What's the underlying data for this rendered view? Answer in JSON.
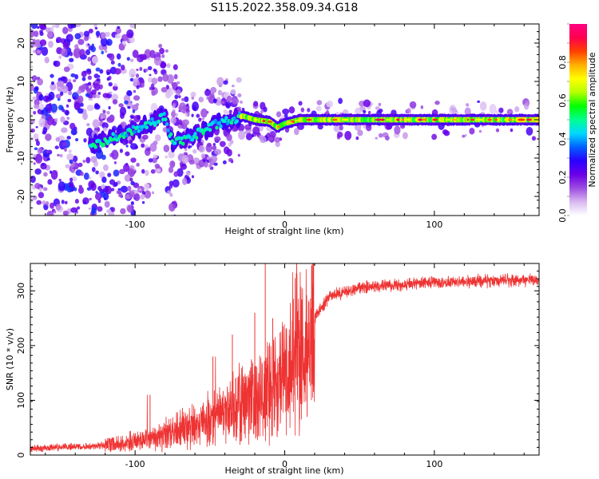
{
  "title": "S115.2022.358.09.34.G18",
  "chart_data": [
    {
      "type": "heatmap",
      "xlabel": "Height of straight line (km)",
      "ylabel": "Frequency (Hz)",
      "xlim": [
        -170,
        170
      ],
      "ylim": [
        -25,
        25
      ],
      "xticks": [
        -100,
        0,
        100
      ],
      "yticks": [
        -20,
        -10,
        0,
        10,
        20
      ],
      "colorbar": {
        "label": "Normalized spectral amplitude",
        "range": [
          0.0,
          1.0
        ],
        "ticks": [
          0.0,
          0.2,
          0.4,
          0.6,
          0.8
        ],
        "colors": [
          "#ffffff",
          "#d8b8f0",
          "#9c4de0",
          "#6a00e8",
          "#2a00ff",
          "#0060ff",
          "#00d8ff",
          "#00ff90",
          "#00ff00",
          "#b4ff00",
          "#ffff00",
          "#ffb000",
          "#ff4000",
          "#ff0050",
          "#ff0080"
        ]
      },
      "ridge": {
        "description_points_x": [
          -130,
          -110,
          -90,
          -80,
          -75,
          -65,
          -55,
          -45,
          -35,
          -28,
          -20,
          -10,
          -5,
          0,
          10,
          30,
          60,
          100,
          140,
          170
        ],
        "description_points_y": [
          -7,
          -4,
          -1,
          1,
          -6,
          -5,
          -3,
          -1,
          0,
          1,
          0,
          -0.5,
          -2,
          -1,
          0,
          0,
          0,
          0,
          0,
          0
        ]
      },
      "grid": false
    },
    {
      "type": "line",
      "xlabel": "Height of straight line (km)",
      "ylabel": "SNR (10 * v/v)",
      "xlim": [
        -170,
        170
      ],
      "ylim": [
        0,
        350
      ],
      "xticks": [
        -100,
        0,
        100
      ],
      "yticks": [
        0,
        100,
        200,
        300
      ],
      "color": "#ee3333",
      "trend_x": [
        -170,
        -150,
        -120,
        -100,
        -80,
        -60,
        -40,
        -25,
        -15,
        -10,
        -5,
        0,
        5,
        10,
        15,
        20,
        30,
        50,
        70,
        100,
        130,
        170
      ],
      "trend_y": [
        12,
        14,
        18,
        25,
        40,
        55,
        75,
        100,
        120,
        135,
        140,
        165,
        190,
        200,
        215,
        250,
        290,
        305,
        310,
        315,
        318,
        320
      ],
      "spikes": [
        {
          "x": -90,
          "y": 110
        },
        {
          "x": -48,
          "y": 180
        },
        {
          "x": -35,
          "y": 220
        },
        {
          "x": -20,
          "y": 260
        },
        {
          "x": -13,
          "y": 350
        },
        {
          "x": -8,
          "y": 250
        },
        {
          "x": 8,
          "y": 350
        },
        {
          "x": 10,
          "y": 65
        },
        {
          "x": 15,
          "y": 70
        }
      ],
      "grid": false
    }
  ]
}
